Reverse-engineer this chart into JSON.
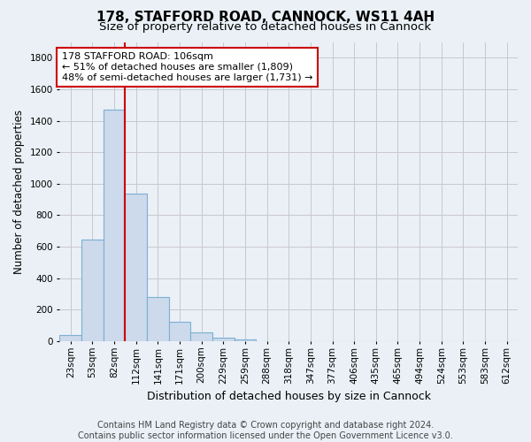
{
  "title_line1": "178, STAFFORD ROAD, CANNOCK, WS11 4AH",
  "title_line2": "Size of property relative to detached houses in Cannock",
  "xlabel": "Distribution of detached houses by size in Cannock",
  "ylabel": "Number of detached properties",
  "categories": [
    "23sqm",
    "53sqm",
    "82sqm",
    "112sqm",
    "141sqm",
    "171sqm",
    "200sqm",
    "229sqm",
    "259sqm",
    "288sqm",
    "318sqm",
    "347sqm",
    "377sqm",
    "406sqm",
    "435sqm",
    "465sqm",
    "494sqm",
    "524sqm",
    "553sqm",
    "583sqm",
    "612sqm"
  ],
  "values": [
    40,
    645,
    1470,
    935,
    280,
    125,
    55,
    22,
    10,
    0,
    0,
    0,
    0,
    0,
    0,
    0,
    0,
    0,
    0,
    0,
    0
  ],
  "bar_color": "#ccdaeb",
  "bar_edge_color": "#7bafd4",
  "vline_color": "#cc0000",
  "vline_x": 2.5,
  "annotation_text": "178 STAFFORD ROAD: 106sqm\n← 51% of detached houses are smaller (1,809)\n48% of semi-detached houses are larger (1,731) →",
  "annotation_box_facecolor": "#ffffff",
  "annotation_box_edgecolor": "#cc0000",
  "ylim": [
    0,
    1900
  ],
  "yticks": [
    0,
    200,
    400,
    600,
    800,
    1000,
    1200,
    1400,
    1600,
    1800
  ],
  "footer_line1": "Contains HM Land Registry data © Crown copyright and database right 2024.",
  "footer_line2": "Contains public sector information licensed under the Open Government Licence v3.0.",
  "background_color": "#eaf0f6",
  "plot_background": "#eaf0f6",
  "grid_color": "#c8c8cc",
  "title_fontsize": 11,
  "subtitle_fontsize": 9.5,
  "ylabel_fontsize": 8.5,
  "xlabel_fontsize": 9,
  "tick_fontsize": 7.5,
  "annotation_fontsize": 8,
  "footer_fontsize": 7
}
